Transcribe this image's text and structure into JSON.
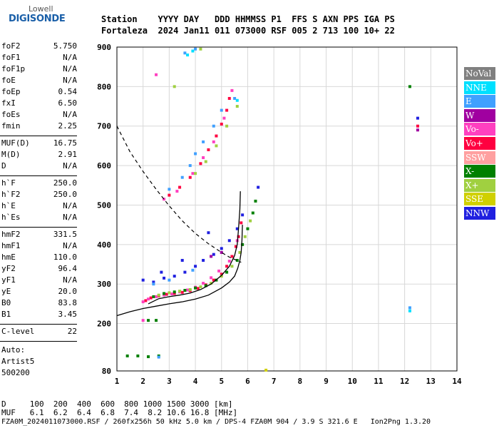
{
  "logo": {
    "brand": "Lowell",
    "product": "DIGISONDE"
  },
  "header": {
    "line1": "Station    YYYY DAY   DDD HHMMSS P1  FFS S AXN PPS IGA PS",
    "line2": "Fortaleza  2024 Jan11 011 073000 RSF 005 2 713 100 10+ 22"
  },
  "params": {
    "group1": [
      {
        "label": "foF2",
        "value": "5.750"
      },
      {
        "label": "foF1",
        "value": "N/A"
      },
      {
        "label": "foF1p",
        "value": "N/A"
      },
      {
        "label": "foE",
        "value": "N/A"
      },
      {
        "label": "foEp",
        "value": "0.54"
      },
      {
        "label": "fxI",
        "value": "6.50"
      },
      {
        "label": "foEs",
        "value": "N/A"
      },
      {
        "label": "fmin",
        "value": "2.25"
      }
    ],
    "group2": [
      {
        "label": "MUF(D)",
        "value": "16.75"
      },
      {
        "label": "M(D)",
        "value": "2.91"
      },
      {
        "label": "D",
        "value": "N/A"
      }
    ],
    "group3": [
      {
        "label": "h`F",
        "value": "250.0"
      },
      {
        "label": "h`F2",
        "value": "250.0"
      },
      {
        "label": "h`E",
        "value": "N/A"
      },
      {
        "label": "h`Es",
        "value": "N/A"
      }
    ],
    "group4": [
      {
        "label": "hmF2",
        "value": "331.5"
      },
      {
        "label": "hmF1",
        "value": "N/A"
      },
      {
        "label": "hmE",
        "value": "110.0"
      },
      {
        "label": "yF2",
        "value": "96.4"
      },
      {
        "label": "yF1",
        "value": "N/A"
      },
      {
        "label": "yE",
        "value": "20.0"
      },
      {
        "label": "B0",
        "value": "83.8"
      },
      {
        "label": "B1",
        "value": "3.45"
      }
    ],
    "group5": [
      {
        "label": "C-level",
        "value": "22"
      }
    ]
  },
  "autoscaling": {
    "label": "Auto:",
    "method": "Artist5",
    "code": "500200"
  },
  "legend": [
    {
      "label": "NoVal",
      "color": "#808080"
    },
    {
      "label": "NNE",
      "color": "#00e0ff"
    },
    {
      "label": "E",
      "color": "#40a0ff"
    },
    {
      "label": "W",
      "color": "#a000a0"
    },
    {
      "label": "Vo-",
      "color": "#ff40c0"
    },
    {
      "label": "Vo+",
      "color": "#ff0040"
    },
    {
      "label": "SSW",
      "color": "#ffa0a0"
    },
    {
      "label": "X-",
      "color": "#008000"
    },
    {
      "label": "X+",
      "color": "#a0d040"
    },
    {
      "label": "SSE",
      "color": "#d0d000"
    },
    {
      "label": "NNW",
      "color": "#2020e0"
    }
  ],
  "footer": {
    "d_line": "D     100  200  400  600  800 1000 1500 3000 [km]",
    "muf_line": "MUF   6.1  6.2  6.4  6.8  7.4  8.2 10.6 16.8 [MHz]",
    "info_line": "FZA0M_2024011073000.RSF / 260fx256h 50 kHz 5.0 km / DPS-4 FZA0M 904 / 3.9 S 321.6 E   Ion2Png 1.3.20"
  },
  "chart_data": {
    "type": "scatter",
    "xlim": [
      1,
      14
    ],
    "ylim": [
      80,
      900
    ],
    "x_ticks": [
      1,
      2,
      3,
      4,
      5,
      6,
      7,
      8,
      9,
      10,
      11,
      12,
      13,
      14
    ],
    "y_ticks": [
      80,
      200,
      300,
      400,
      500,
      600,
      700,
      800,
      900
    ],
    "grid": true,
    "legend_position": "right",
    "series": [
      {
        "name": "Vo+",
        "color": "#ff0040",
        "points": [
          [
            2.1,
            258
          ],
          [
            2.3,
            265
          ],
          [
            2.6,
            270
          ],
          [
            2.9,
            274
          ],
          [
            3.2,
            276
          ],
          [
            3.5,
            279
          ],
          [
            3.8,
            283
          ],
          [
            4.1,
            289
          ],
          [
            4.4,
            298
          ],
          [
            4.7,
            310
          ],
          [
            5.0,
            325
          ],
          [
            5.2,
            345
          ],
          [
            5.4,
            370
          ],
          [
            5.55,
            395
          ],
          [
            5.65,
            420
          ],
          [
            5.75,
            455
          ],
          [
            3.0,
            525
          ],
          [
            3.4,
            545
          ],
          [
            3.8,
            570
          ],
          [
            4.2,
            605
          ],
          [
            4.5,
            640
          ],
          [
            4.8,
            675
          ],
          [
            5.0,
            705
          ],
          [
            5.2,
            740
          ],
          [
            5.3,
            770
          ],
          [
            12.5,
            700
          ]
        ]
      },
      {
        "name": "Vo-",
        "color": "#ff40c0",
        "points": [
          [
            2.0,
            255
          ],
          [
            2.2,
            262
          ],
          [
            2.5,
            268
          ],
          [
            2.8,
            272
          ],
          [
            3.1,
            275
          ],
          [
            3.4,
            280
          ],
          [
            3.7,
            285
          ],
          [
            4.0,
            292
          ],
          [
            4.3,
            302
          ],
          [
            4.6,
            316
          ],
          [
            4.9,
            333
          ],
          [
            5.3,
            358
          ],
          [
            5.6,
            410
          ],
          [
            2.8,
            515
          ],
          [
            3.3,
            535
          ],
          [
            3.9,
            580
          ],
          [
            4.3,
            620
          ],
          [
            4.7,
            660
          ],
          [
            5.1,
            720
          ],
          [
            5.4,
            790
          ],
          [
            2.0,
            208
          ],
          [
            2.5,
            830
          ]
        ]
      },
      {
        "name": "X-",
        "color": "#008000",
        "points": [
          [
            2.4,
            268
          ],
          [
            2.8,
            276
          ],
          [
            3.2,
            280
          ],
          [
            3.6,
            284
          ],
          [
            4.0,
            290
          ],
          [
            4.4,
            296
          ],
          [
            4.8,
            310
          ],
          [
            5.2,
            330
          ],
          [
            5.6,
            360
          ],
          [
            5.8,
            400
          ],
          [
            6.0,
            440
          ],
          [
            6.2,
            480
          ],
          [
            6.3,
            510
          ],
          [
            2.2,
            208
          ],
          [
            2.5,
            208
          ],
          [
            1.4,
            118
          ],
          [
            1.8,
            118
          ],
          [
            2.2,
            116
          ],
          [
            2.6,
            118
          ],
          [
            12.2,
            800
          ]
        ]
      },
      {
        "name": "X+",
        "color": "#a0d040",
        "points": [
          [
            2.6,
            272
          ],
          [
            3.0,
            278
          ],
          [
            3.4,
            282
          ],
          [
            3.8,
            286
          ],
          [
            4.2,
            293
          ],
          [
            4.6,
            302
          ],
          [
            5.0,
            320
          ],
          [
            5.4,
            345
          ],
          [
            5.7,
            380
          ],
          [
            5.9,
            420
          ],
          [
            6.1,
            460
          ],
          [
            4.0,
            580
          ],
          [
            4.4,
            610
          ],
          [
            4.8,
            650
          ],
          [
            5.2,
            700
          ],
          [
            5.6,
            750
          ],
          [
            3.2,
            800
          ],
          [
            4.2,
            895
          ]
        ]
      },
      {
        "name": "NNW",
        "color": "#2020e0",
        "points": [
          [
            2.0,
            310
          ],
          [
            2.4,
            305
          ],
          [
            2.8,
            315
          ],
          [
            3.2,
            320
          ],
          [
            3.6,
            330
          ],
          [
            4.0,
            345
          ],
          [
            4.3,
            360
          ],
          [
            4.7,
            375
          ],
          [
            5.0,
            390
          ],
          [
            5.3,
            410
          ],
          [
            5.6,
            440
          ],
          [
            4.5,
            430
          ],
          [
            3.5,
            360
          ],
          [
            2.7,
            330
          ],
          [
            5.8,
            475
          ],
          [
            6.4,
            545
          ],
          [
            12.5,
            720
          ]
        ]
      },
      {
        "name": "E",
        "color": "#40a0ff",
        "points": [
          [
            3.0,
            540
          ],
          [
            3.5,
            570
          ],
          [
            3.8,
            600
          ],
          [
            4.0,
            630
          ],
          [
            4.3,
            660
          ],
          [
            4.7,
            700
          ],
          [
            5.0,
            740
          ],
          [
            5.5,
            770
          ],
          [
            3.6,
            885
          ],
          [
            4.0,
            895
          ],
          [
            2.4,
            300
          ],
          [
            3.0,
            310
          ],
          [
            3.9,
            335
          ],
          [
            2.6,
            115
          ],
          [
            12.2,
            240
          ]
        ]
      },
      {
        "name": "NNE",
        "color": "#00e0ff",
        "points": [
          [
            3.7,
            880
          ],
          [
            3.9,
            890
          ],
          [
            5.6,
            765
          ],
          [
            12.2,
            232
          ]
        ]
      },
      {
        "name": "W",
        "color": "#a000a0",
        "points": [
          [
            4.6,
            370
          ],
          [
            5.0,
            380
          ],
          [
            12.5,
            690
          ]
        ]
      },
      {
        "name": "SSE",
        "color": "#d0d000",
        "points": [
          [
            6.7,
            82
          ]
        ]
      }
    ],
    "virtual_height_profile": [
      [
        2.2,
        250
      ],
      [
        2.6,
        263
      ],
      [
        3.0,
        268
      ],
      [
        3.4,
        272
      ],
      [
        3.8,
        277
      ],
      [
        4.2,
        286
      ],
      [
        4.6,
        300
      ],
      [
        5.0,
        322
      ],
      [
        5.3,
        345
      ],
      [
        5.5,
        372
      ],
      [
        5.6,
        400
      ],
      [
        5.65,
        440
      ],
      [
        5.7,
        490
      ],
      [
        5.72,
        535
      ]
    ],
    "true_height_profile": [
      [
        1.0,
        220
      ],
      [
        1.5,
        230
      ],
      [
        2.0,
        238
      ],
      [
        2.5,
        244
      ],
      [
        3.0,
        250
      ],
      [
        3.5,
        255
      ],
      [
        4.0,
        262
      ],
      [
        4.5,
        272
      ],
      [
        5.0,
        290
      ],
      [
        5.3,
        305
      ],
      [
        5.5,
        320
      ],
      [
        5.62,
        340
      ],
      [
        5.7,
        360
      ],
      [
        5.75,
        380
      ],
      [
        5.78,
        410
      ],
      [
        5.8,
        450
      ]
    ],
    "muf_curve": [
      [
        1.0,
        700
      ],
      [
        1.5,
        635
      ],
      [
        2.0,
        585
      ],
      [
        2.5,
        540
      ],
      [
        3.0,
        498
      ],
      [
        3.5,
        460
      ],
      [
        4.0,
        428
      ],
      [
        4.5,
        402
      ],
      [
        5.0,
        380
      ],
      [
        5.3,
        368
      ],
      [
        5.75,
        355
      ]
    ]
  }
}
